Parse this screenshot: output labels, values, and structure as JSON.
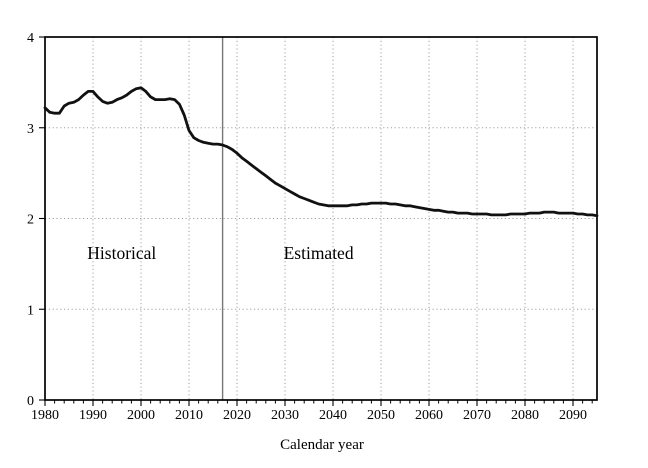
{
  "figure": {
    "background": "#ffffff",
    "border_color": "#000000",
    "gridline_color": "#a0a0a0",
    "divider_color": "#777777"
  },
  "chart_data": {
    "type": "line",
    "title": "",
    "xlabel": "Calendar year",
    "ylabel": "",
    "xlim": [
      1980,
      2095
    ],
    "ylim": [
      0,
      4
    ],
    "x_ticks": [
      1980,
      1990,
      2000,
      2010,
      2020,
      2030,
      2040,
      2050,
      2060,
      2070,
      2080,
      2090
    ],
    "x_minor_tick_interval": 2,
    "y_ticks": [
      0,
      1,
      2,
      3,
      4
    ],
    "y_gridlines": [
      1,
      2,
      3
    ],
    "grid_style": "dotted",
    "legend": "none",
    "divider_year": 2017,
    "annotations": [
      {
        "text": "Historical",
        "x": 1996,
        "y": 1.62
      },
      {
        "text": "Estimated",
        "x": 2037,
        "y": 1.62
      }
    ],
    "series": [
      {
        "name": "series-1",
        "color": "#111111",
        "x_start": 1980,
        "x_step": 1,
        "x_end": 2095,
        "values": [
          3.22,
          3.17,
          3.16,
          3.16,
          3.24,
          3.27,
          3.28,
          3.31,
          3.36,
          3.4,
          3.4,
          3.34,
          3.29,
          3.27,
          3.28,
          3.31,
          3.33,
          3.36,
          3.4,
          3.43,
          3.44,
          3.4,
          3.34,
          3.31,
          3.31,
          3.31,
          3.32,
          3.31,
          3.26,
          3.14,
          2.97,
          2.89,
          2.86,
          2.84,
          2.83,
          2.82,
          2.82,
          2.81,
          2.79,
          2.76,
          2.72,
          2.67,
          2.63,
          2.59,
          2.55,
          2.51,
          2.47,
          2.43,
          2.39,
          2.36,
          2.33,
          2.3,
          2.27,
          2.24,
          2.22,
          2.2,
          2.18,
          2.16,
          2.15,
          2.14,
          2.14,
          2.14,
          2.14,
          2.14,
          2.15,
          2.15,
          2.16,
          2.16,
          2.17,
          2.17,
          2.17,
          2.17,
          2.16,
          2.16,
          2.15,
          2.14,
          2.14,
          2.13,
          2.12,
          2.11,
          2.1,
          2.09,
          2.09,
          2.08,
          2.07,
          2.07,
          2.06,
          2.06,
          2.06,
          2.05,
          2.05,
          2.05,
          2.05,
          2.04,
          2.04,
          2.04,
          2.04,
          2.05,
          2.05,
          2.05,
          2.05,
          2.06,
          2.06,
          2.06,
          2.07,
          2.07,
          2.07,
          2.06,
          2.06,
          2.06,
          2.06,
          2.05,
          2.05,
          2.04,
          2.04,
          2.03
        ]
      }
    ]
  }
}
